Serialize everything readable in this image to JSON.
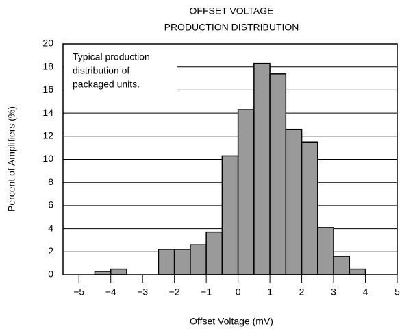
{
  "chart_data": {
    "type": "histogram",
    "title": [
      "OFFSET VOLTAGE",
      "PRODUCTION DISTRIBUTION"
    ],
    "xlabel": "Offset Voltage (mV)",
    "ylabel": "Percent of Amplifiers (%)",
    "annotation": [
      "Typical production",
      "distribution of",
      "packaged units."
    ],
    "bins": [
      -4.5,
      -4,
      -3.5,
      -3,
      -2.5,
      -2,
      -1.5,
      -1,
      -0.5,
      0,
      0.5,
      1,
      1.5,
      2,
      2.5,
      3,
      3.5,
      4
    ],
    "values": [
      0.3,
      0.5,
      0,
      0,
      2.2,
      2.2,
      2.6,
      3.7,
      10.3,
      14.3,
      18.3,
      17.4,
      12.6,
      11.5,
      4.1,
      1.6,
      0.5
    ],
    "color": "#9a9a9a",
    "xlim": [
      -5.5,
      5
    ],
    "xticks": [
      {
        "value": -5,
        "label": "−5"
      },
      {
        "value": -4,
        "label": "−4"
      },
      {
        "value": -3,
        "label": "−3"
      },
      {
        "value": -2,
        "label": "−2"
      },
      {
        "value": -1,
        "label": "−1"
      },
      0,
      1,
      2,
      3,
      4,
      5
    ],
    "ylim": [
      0,
      20
    ],
    "yticks": [
      0,
      2,
      4,
      6,
      8,
      10,
      12,
      14,
      16,
      18,
      20
    ],
    "grid": true
  }
}
